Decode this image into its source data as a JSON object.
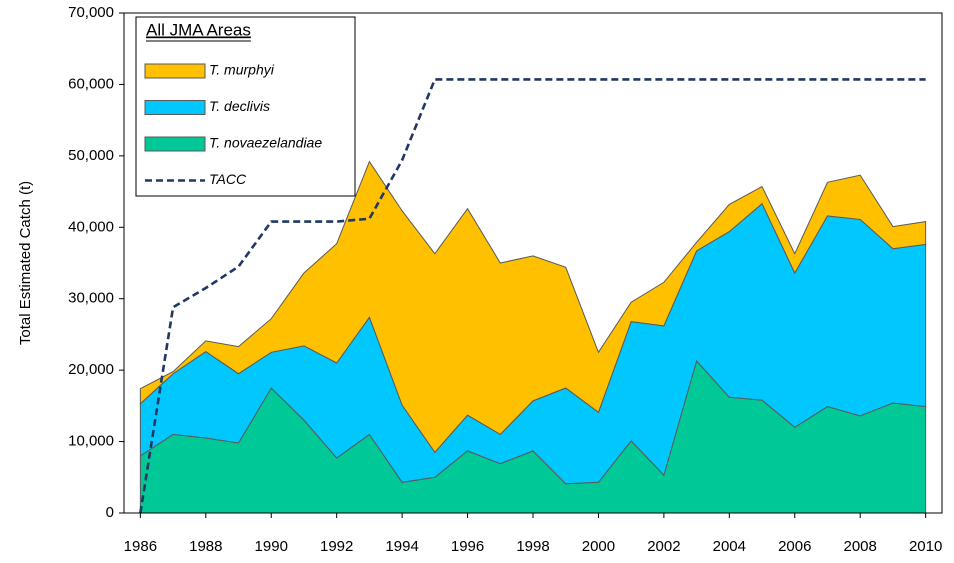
{
  "chart_data": {
    "type": "stacked_area",
    "ylabel": "Total Estimated Catch (t)",
    "legend_title": "All JMA Areas",
    "legend": "upper left",
    "x": [
      1986,
      1987,
      1988,
      1989,
      1990,
      1991,
      1992,
      1993,
      1994,
      1995,
      1996,
      1997,
      1998,
      1999,
      2000,
      2001,
      2002,
      2003,
      2004,
      2005,
      2006,
      2007,
      2008,
      2009,
      2010
    ],
    "xlim": [
      1985.5,
      2010.5
    ],
    "xticks": [
      1986,
      1988,
      1990,
      1992,
      1994,
      1996,
      1998,
      2000,
      2002,
      2004,
      2006,
      2008,
      2010
    ],
    "ylim": [
      0,
      70000
    ],
    "yticks": [
      0,
      {
        "value": 10000,
        "label": "10,000"
      },
      {
        "value": 20000,
        "label": "20,000"
      },
      {
        "value": 30000,
        "label": "30,000"
      },
      {
        "value": 40000,
        "label": "40,000"
      },
      {
        "value": 50000,
        "label": "50,000"
      },
      {
        "value": 60000,
        "label": "60,000"
      },
      {
        "value": 70000,
        "label": "70,000"
      }
    ],
    "series": [
      {
        "name": "T. murphyi",
        "kind": "area",
        "color": "#ffc000",
        "values": [
          2100,
          300,
          1500,
          3800,
          4700,
          10200,
          16700,
          21800,
          27200,
          27800,
          28900,
          24000,
          20300,
          16900,
          8400,
          2700,
          6100,
          1200,
          3800,
          2400,
          2700,
          4700,
          6200,
          3100,
          3200
        ]
      },
      {
        "name": "T. declivis",
        "kind": "area",
        "color": "#00c8ff",
        "values": [
          7300,
          8500,
          12100,
          9700,
          5000,
          10400,
          13300,
          16400,
          10800,
          3500,
          5000,
          4100,
          7000,
          13400,
          9800,
          16700,
          20900,
          15400,
          23200,
          27500,
          21600,
          26700,
          27500,
          21600,
          22700
        ]
      },
      {
        "name": "T. novaezelandiae",
        "kind": "area",
        "color": "#00c896",
        "values": [
          8000,
          11000,
          10500,
          9800,
          17500,
          13000,
          7700,
          11000,
          4300,
          5000,
          8700,
          6900,
          8700,
          4100,
          4300,
          10100,
          5300,
          21300,
          16200,
          15800,
          12000,
          14900,
          13600,
          15400,
          14900
        ]
      },
      {
        "name": "TACC",
        "kind": "line",
        "color": "#1f3864",
        "values": [
          0,
          28800,
          31500,
          34500,
          40800,
          40800,
          40800,
          41200,
          49400,
          60700,
          60700,
          60700,
          60700,
          60700,
          60700,
          60700,
          60700,
          60700,
          60700,
          60700,
          60700,
          60700,
          60700,
          60700,
          60700
        ]
      }
    ]
  }
}
